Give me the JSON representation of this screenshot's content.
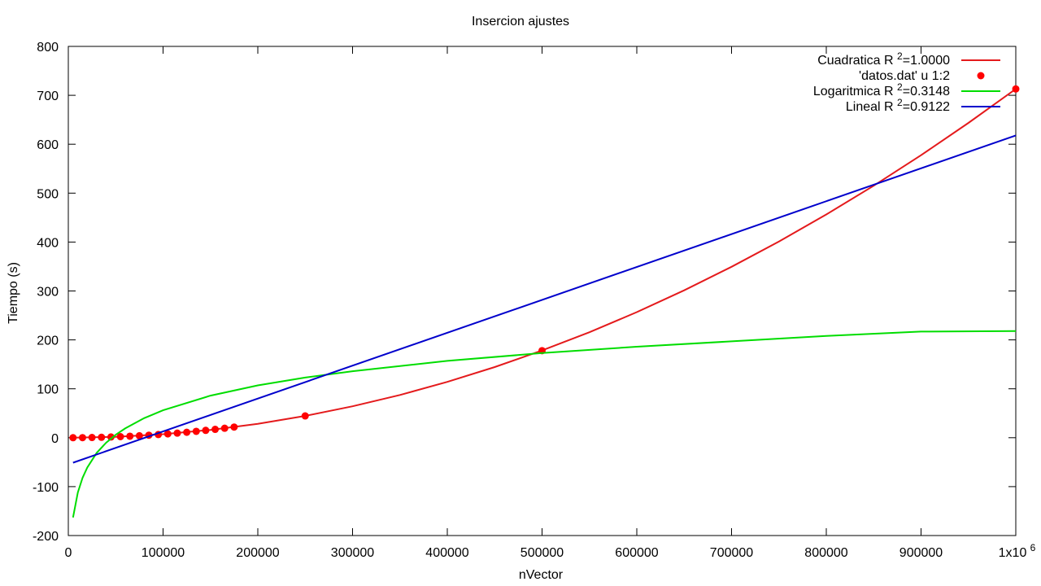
{
  "chart_data": {
    "type": "line",
    "title": "Insercion ajustes",
    "xlabel": "nVector",
    "ylabel": "Tiempo (s)",
    "xlim": [
      0,
      1000000
    ],
    "ylim": [
      -200,
      800
    ],
    "xticks": [
      0,
      100000,
      200000,
      300000,
      400000,
      500000,
      600000,
      700000,
      800000,
      900000,
      1000000
    ],
    "xtick_labels": [
      "0",
      "100000",
      "200000",
      "300000",
      "400000",
      "500000",
      "600000",
      "700000",
      "800000",
      "900000",
      "1x10"
    ],
    "xtick_last_superscript": "6",
    "yticks": [
      -200,
      -100,
      0,
      100,
      200,
      300,
      400,
      500,
      600,
      700,
      800
    ],
    "ytick_labels": [
      "-200",
      "-100",
      "0",
      "100",
      "200",
      "300",
      "400",
      "500",
      "600",
      "700",
      "800"
    ],
    "grid": false,
    "legend_position": "top-right",
    "series": [
      {
        "name": "Cuadratica R",
        "name_sup": "2",
        "name_suffix": "=1.0000",
        "kind": "line",
        "color": "#e41a1c",
        "x": [
          5000,
          50000,
          100000,
          150000,
          200000,
          250000,
          300000,
          350000,
          400000,
          450000,
          500000,
          550000,
          600000,
          650000,
          700000,
          750000,
          800000,
          850000,
          900000,
          950000,
          1000000
        ],
        "y": [
          0,
          1.8,
          7.1,
          16,
          28.5,
          44.6,
          64.2,
          87.4,
          114.1,
          144.4,
          178.3,
          215.7,
          256.7,
          301.3,
          349.4,
          401,
          456.4,
          515.2,
          577.6,
          643.6,
          713
        ]
      },
      {
        "name": "'datos.dat' u 1:2",
        "kind": "points",
        "color": "#ff0000",
        "x": [
          5000,
          15000,
          25000,
          35000,
          45000,
          55000,
          65000,
          75000,
          85000,
          95000,
          105000,
          115000,
          125000,
          135000,
          145000,
          155000,
          165000,
          175000,
          250000,
          500000,
          1000000
        ],
        "y": [
          0.02,
          0.16,
          0.45,
          0.87,
          1.44,
          2.16,
          3.01,
          4.01,
          5.15,
          6.43,
          7.86,
          9.43,
          11.1,
          13.0,
          15.0,
          17.1,
          19.4,
          21.8,
          44.5,
          178,
          713
        ]
      },
      {
        "name": "Logaritmica R",
        "name_sup": "2",
        "name_suffix": "=0.3148",
        "kind": "line",
        "color": "#00dd00",
        "x": [
          5000,
          10000,
          15000,
          20000,
          30000,
          40000,
          50000,
          60000,
          80000,
          100000,
          150000,
          200000,
          250000,
          300000,
          400000,
          500000,
          600000,
          700000,
          800000,
          900000,
          1000000
        ],
        "y": [
          -163,
          -112,
          -82,
          -61,
          -31,
          -10,
          6,
          19,
          40,
          56,
          86,
          107,
          123,
          136,
          157,
          173,
          186,
          197,
          208,
          217,
          218
        ]
      },
      {
        "name": "Lineal R",
        "name_sup": "2",
        "name_suffix": "=0.9122",
        "kind": "line",
        "color": "#0000cc",
        "x": [
          5000,
          1000000
        ],
        "y": [
          -51,
          618
        ]
      }
    ]
  }
}
